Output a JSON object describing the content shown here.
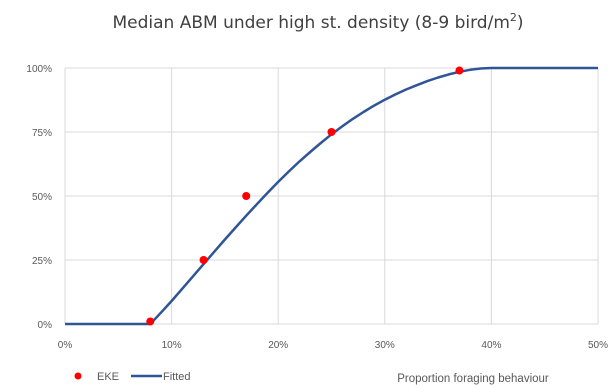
{
  "chart_data": {
    "type": "scatter",
    "title_main": "Median ABM under high st. density (8-9 bird/m",
    "title_sup": "2",
    "title_end": ")",
    "xlabel": "Proportion foraging behaviour",
    "ylabel": "",
    "xlim": [
      0,
      0.5
    ],
    "ylim": [
      0,
      1
    ],
    "x_ticks": [
      {
        "value": 0,
        "label": "0%"
      },
      {
        "value": 0.1,
        "label": "10%"
      },
      {
        "value": 0.2,
        "label": "20%"
      },
      {
        "value": 0.3,
        "label": "30%"
      },
      {
        "value": 0.4,
        "label": "40%"
      },
      {
        "value": 0.5,
        "label": "50%"
      }
    ],
    "y_ticks": [
      {
        "value": 0,
        "label": "0%"
      },
      {
        "value": 0.25,
        "label": "25%"
      },
      {
        "value": 0.5,
        "label": "50%"
      },
      {
        "value": 0.75,
        "label": "75%"
      },
      {
        "value": 1,
        "label": "100%"
      }
    ],
    "grid": true,
    "legend_position": "bottom-left",
    "series": [
      {
        "name": "EKE",
        "kind": "points",
        "color": "#ff0000",
        "x": [
          0.08,
          0.13,
          0.17,
          0.25,
          0.37
        ],
        "y": [
          0.01,
          0.25,
          0.5,
          0.75,
          0.99
        ]
      },
      {
        "name": "Fitted",
        "kind": "line",
        "color": "#2f5597",
        "x": [
          0,
          0.08,
          0.09,
          0.1,
          0.11,
          0.12,
          0.13,
          0.14,
          0.15,
          0.16,
          0.17,
          0.18,
          0.19,
          0.2,
          0.21,
          0.22,
          0.23,
          0.24,
          0.25,
          0.26,
          0.27,
          0.28,
          0.29,
          0.3,
          0.31,
          0.32,
          0.33,
          0.34,
          0.35,
          0.36,
          0.37,
          0.38,
          0.39,
          0.4,
          0.5
        ],
        "y": [
          0,
          0,
          0.044,
          0.09,
          0.138,
          0.186,
          0.234,
          0.282,
          0.33,
          0.377,
          0.423,
          0.468,
          0.512,
          0.555,
          0.596,
          0.635,
          0.672,
          0.707,
          0.741,
          0.772,
          0.801,
          0.828,
          0.853,
          0.876,
          0.897,
          0.916,
          0.933,
          0.949,
          0.963,
          0.975,
          0.985,
          0.993,
          0.998,
          1.0,
          1.0
        ]
      }
    ]
  }
}
